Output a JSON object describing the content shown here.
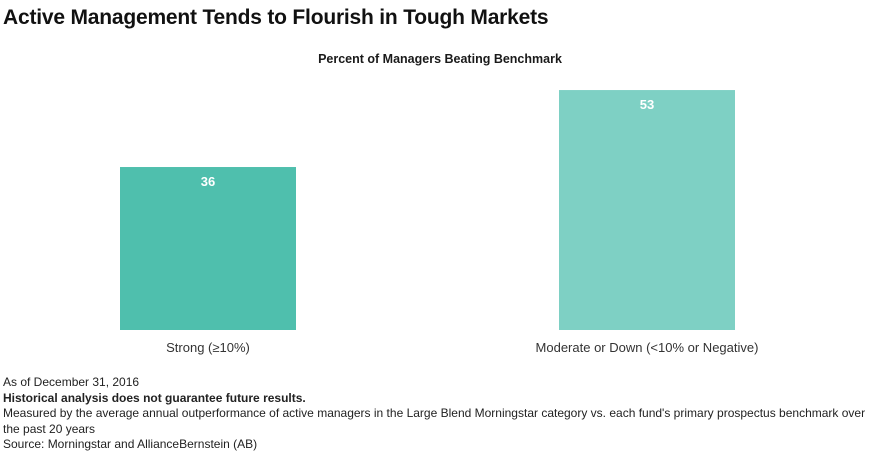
{
  "header": {
    "title": "Active Management Tends to Flourish in Tough Markets"
  },
  "colors": {
    "strong_bar": "#4fbfad",
    "moderate_bar": "#7ed0c4",
    "label_text": "#ffffff",
    "axis_text": "#333333"
  },
  "chart_data": {
    "type": "bar",
    "title": "Percent of Managers Beating Benchmark",
    "categories": [
      "Strong (≥10%)",
      "Moderate or Down (<10% or Negative)"
    ],
    "values": [
      36,
      53
    ],
    "data_labels": [
      "36",
      "53"
    ],
    "xlabel": "",
    "ylabel": "",
    "ylim": [
      0,
      55
    ],
    "grid": false
  },
  "footer": {
    "as_of": "As of December 31, 2016",
    "disclaimer": "Historical analysis does not guarantee future results.",
    "note": "Measured by the average annual outperformance of active managers in the Large Blend Morningstar category vs. each fund's primary prospectus benchmark over the past 20 years",
    "source": "Source: Morningstar and AllianceBernstein (AB)"
  }
}
